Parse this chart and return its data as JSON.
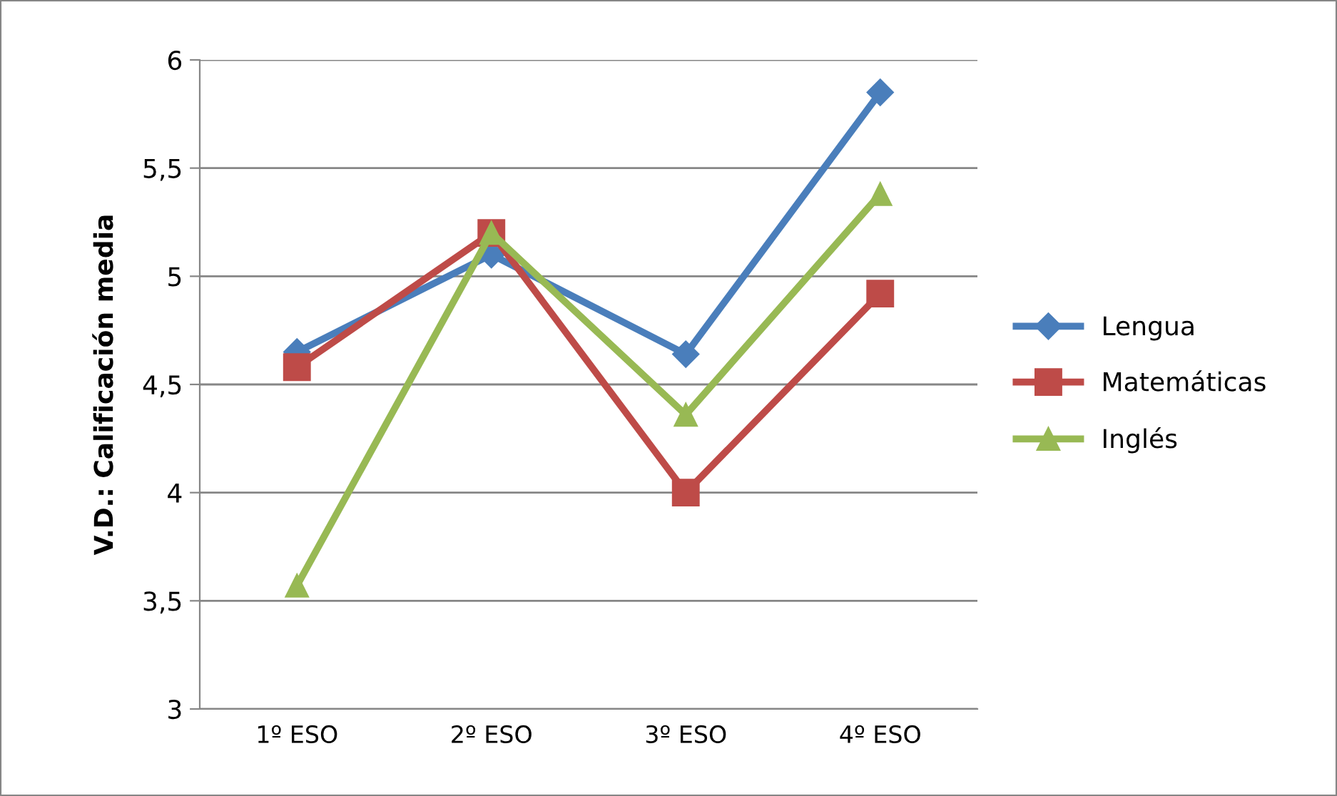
{
  "chart_data": {
    "type": "line",
    "ylabel": "V.D.: Calificación media",
    "categories": [
      "1º ESO",
      "2º ESO",
      "3º ESO",
      "4º ESO"
    ],
    "series": [
      {
        "name": "Lengua",
        "color": "#4a7ebb",
        "marker": "diamond",
        "values": [
          4.65,
          5.1,
          4.64,
          5.85
        ]
      },
      {
        "name": "Matemáticas",
        "color": "#be4b48",
        "marker": "square",
        "values": [
          4.58,
          5.2,
          4.0,
          4.92
        ]
      },
      {
        "name": "Inglés",
        "color": "#98b954",
        "marker": "triangle",
        "values": [
          3.57,
          5.2,
          4.36,
          5.38
        ]
      }
    ],
    "ylim": [
      3,
      6
    ],
    "yticks": [
      {
        "value": 3,
        "label": "3"
      },
      {
        "value": 3.5,
        "label": "3,5"
      },
      {
        "value": 4,
        "label": "4"
      },
      {
        "value": 4.5,
        "label": "4,5"
      },
      {
        "value": 5,
        "label": "5"
      },
      {
        "value": 5.5,
        "label": "5,5"
      },
      {
        "value": 6,
        "label": "6"
      }
    ],
    "grid": "y",
    "legend": "right",
    "line_style": "solid"
  }
}
